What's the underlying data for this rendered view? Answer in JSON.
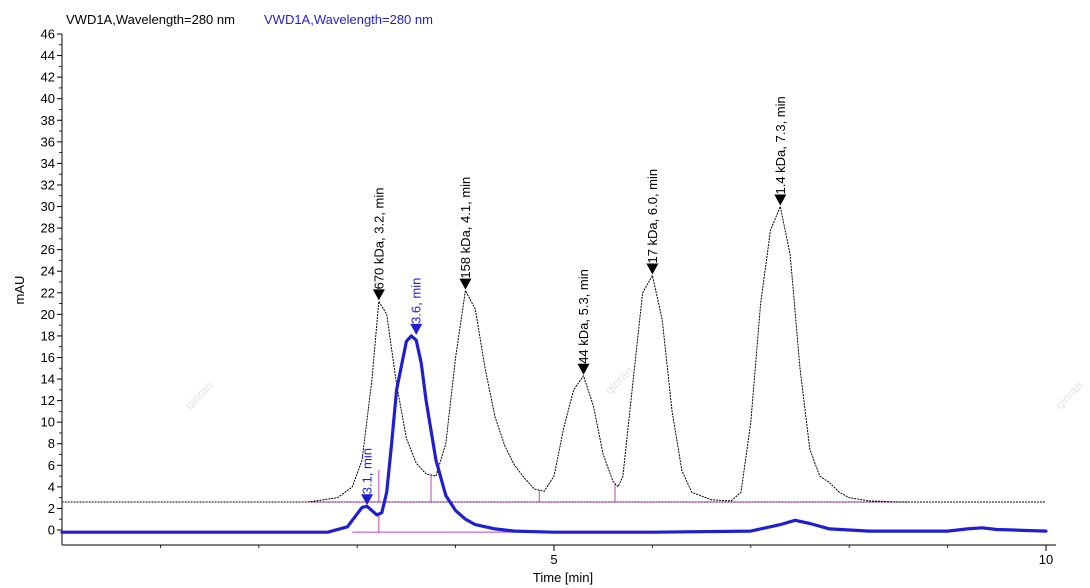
{
  "chart_data": {
    "type": "line",
    "legend": [
      {
        "text": "VWD1A,Wavelength=280 nm",
        "color": "#000000"
      },
      {
        "text": "VWD1A,Wavelength=280 nm",
        "color": "#1f1fd0"
      }
    ],
    "xlabel": "Time [min]",
    "ylabel": "mAU",
    "xlim": [
      0,
      10.2
    ],
    "ylim": [
      -1,
      46
    ],
    "x_ticks": [
      5,
      10
    ],
    "y_ticks": [
      0,
      2,
      4,
      6,
      8,
      10,
      12,
      14,
      16,
      18,
      20,
      22,
      24,
      26,
      28,
      30,
      32,
      34,
      36,
      38,
      40,
      42,
      44,
      46
    ],
    "grid": false,
    "watermark": "qinran",
    "series": [
      {
        "style": "dotted",
        "color": "#000000",
        "baseline": 2.6,
        "x": [
          0,
          2.5,
          2.8,
          2.95,
          3.05,
          3.15,
          3.22,
          3.3,
          3.4,
          3.5,
          3.6,
          3.7,
          3.8,
          3.9,
          4.0,
          4.1,
          4.2,
          4.3,
          4.4,
          4.5,
          4.6,
          4.7,
          4.8,
          4.9,
          5.0,
          5.1,
          5.2,
          5.3,
          5.4,
          5.5,
          5.6,
          5.65,
          5.7,
          5.8,
          5.9,
          6.0,
          6.1,
          6.2,
          6.3,
          6.4,
          6.6,
          6.8,
          6.9,
          7.0,
          7.1,
          7.2,
          7.3,
          7.4,
          7.5,
          7.6,
          7.7,
          7.8,
          7.9,
          8.0,
          8.2,
          8.5,
          9.0,
          10.0
        ],
        "y": [
          2.6,
          2.6,
          3.0,
          4.0,
          6.5,
          14.0,
          21.2,
          20.0,
          13.5,
          8.5,
          6.2,
          5.2,
          5.0,
          8.0,
          16.0,
          22.2,
          20.5,
          15.0,
          10.5,
          7.8,
          6.0,
          4.8,
          3.8,
          3.6,
          5.0,
          9.5,
          13.0,
          14.3,
          11.5,
          7.0,
          4.5,
          4.0,
          5.0,
          13.5,
          22.0,
          23.6,
          19.5,
          11.0,
          5.5,
          3.5,
          2.8,
          2.7,
          3.5,
          10.0,
          21.0,
          27.8,
          30.0,
          25.5,
          15.0,
          7.5,
          5.0,
          4.4,
          3.5,
          3.0,
          2.7,
          2.6,
          2.6,
          2.6
        ]
      },
      {
        "style": "solid",
        "color": "#1f1fd0",
        "baseline": -0.2,
        "x": [
          0,
          2.7,
          2.9,
          3.0,
          3.05,
          3.1,
          3.15,
          3.2,
          3.25,
          3.3,
          3.35,
          3.4,
          3.5,
          3.55,
          3.6,
          3.65,
          3.7,
          3.8,
          3.9,
          4.0,
          4.1,
          4.2,
          4.4,
          4.6,
          5.0,
          6.0,
          7.0,
          7.3,
          7.45,
          7.6,
          7.8,
          8.2,
          9.0,
          9.2,
          9.35,
          9.5,
          10.0
        ],
        "y": [
          -0.2,
          -0.2,
          0.3,
          1.5,
          2.1,
          2.2,
          1.8,
          1.4,
          1.6,
          3.5,
          8.0,
          13.0,
          17.5,
          18.0,
          17.6,
          15.5,
          12.0,
          6.5,
          3.2,
          1.8,
          1.0,
          0.5,
          0.1,
          -0.1,
          -0.2,
          -0.2,
          -0.1,
          0.5,
          0.9,
          0.6,
          0.1,
          -0.1,
          -0.1,
          0.1,
          0.2,
          0.05,
          -0.1
        ]
      }
    ],
    "annotations": [
      {
        "text": "670 kDa, 3.2, min",
        "x": 3.22,
        "y": 21.2,
        "color": "#000000",
        "arrow": true
      },
      {
        "text": "158 kDa, 4.1, min",
        "x": 4.1,
        "y": 22.2,
        "color": "#000000",
        "arrow": true
      },
      {
        "text": "44 kDa, 5.3, min",
        "x": 5.3,
        "y": 14.3,
        "color": "#000000",
        "arrow": true
      },
      {
        "text": "17 kDa, 6.0, min",
        "x": 6.0,
        "y": 23.6,
        "color": "#000000",
        "arrow": true
      },
      {
        "text": "1.4 kDa, 7.3, min",
        "x": 7.3,
        "y": 30.0,
        "color": "#000000",
        "arrow": true
      },
      {
        "text": "3.1, min",
        "x": 3.1,
        "y": 2.2,
        "color": "#1f1fd0",
        "arrow": true
      },
      {
        "text": "3.6, min",
        "x": 3.6,
        "y": 18.0,
        "color": "#1f1fd0",
        "arrow": true
      }
    ],
    "integration_markers": {
      "color": "#c040c0",
      "black_baseline": 2.6,
      "black_splits": [
        3.22,
        3.75,
        4.85,
        5.62
      ],
      "blue_baseline": -0.2,
      "blue_splits": [
        3.22
      ]
    }
  }
}
